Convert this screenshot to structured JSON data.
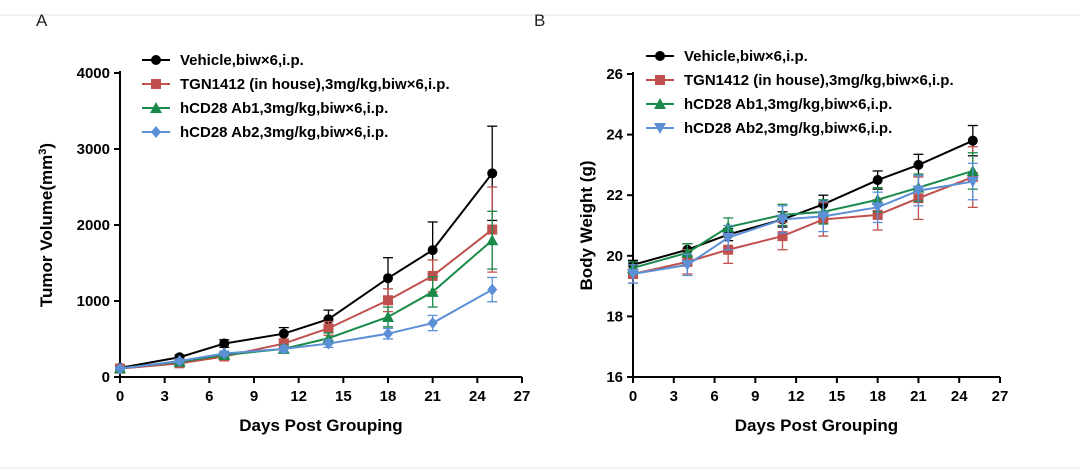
{
  "chart_data": [
    {
      "type": "line",
      "panel_label": "A",
      "xlabel": "Days Post Grouping",
      "ylabel": "Tumor Volume(mm",
      "ylabel_sup": "3",
      "ylabel_close": ")",
      "xlim": [
        0,
        27
      ],
      "ylim": [
        0,
        4000
      ],
      "xticks": [
        "0",
        "3",
        "6",
        "9",
        "12",
        "15",
        "18",
        "21",
        "24",
        "27"
      ],
      "yticks": [
        "0",
        "1000",
        "2000",
        "3000",
        "4000"
      ],
      "x": [
        0,
        4,
        7,
        11,
        14,
        18,
        21,
        25
      ],
      "legend_position": "top-right",
      "series": [
        {
          "name": "Vehicle,biw×6,i.p.",
          "color": "#000000",
          "marker": "circle",
          "values": [
            120,
            260,
            440,
            570,
            760,
            1300,
            1670,
            2680
          ],
          "errors": [
            20,
            30,
            50,
            80,
            120,
            270,
            370,
            620
          ]
        },
        {
          "name": "TGN1412 (in house),3mg/kg,biw×6,i.p.",
          "color": "#c0504d",
          "marker": "square",
          "values": [
            110,
            180,
            270,
            440,
            640,
            1010,
            1330,
            1940
          ],
          "errors": [
            20,
            25,
            40,
            60,
            90,
            150,
            210,
            560
          ]
        },
        {
          "name": "hCD28 Ab1,3mg/kg,biw×6,i.p.",
          "color": "#1a8a4a",
          "marker": "triangle-up",
          "values": [
            115,
            200,
            290,
            370,
            510,
            790,
            1120,
            1800
          ],
          "errors": [
            20,
            25,
            35,
            50,
            70,
            130,
            200,
            380
          ]
        },
        {
          "name": "hCD28 Ab2,3mg/kg,biw×6,i.p.",
          "color": "#5b8fd6",
          "marker": "diamond",
          "values": [
            110,
            210,
            310,
            370,
            440,
            570,
            710,
            1150
          ],
          "errors": [
            20,
            25,
            30,
            40,
            50,
            70,
            100,
            160
          ]
        }
      ]
    },
    {
      "type": "line",
      "panel_label": "B",
      "xlabel": "Days Post Grouping",
      "ylabel": "Body Weight (g)",
      "xlim": [
        0,
        27
      ],
      "ylim": [
        16,
        26
      ],
      "xticks": [
        "0",
        "3",
        "6",
        "9",
        "12",
        "15",
        "18",
        "21",
        "24",
        "27"
      ],
      "yticks": [
        "16",
        "18",
        "20",
        "22",
        "24",
        "26"
      ],
      "x": [
        0,
        4,
        7,
        11,
        14,
        18,
        21,
        25
      ],
      "legend_position": "top-right",
      "series": [
        {
          "name": "Vehicle,biw×6,i.p.",
          "color": "#000000",
          "marker": "circle",
          "values": [
            19.7,
            20.2,
            20.7,
            21.2,
            21.7,
            22.5,
            23.0,
            23.8
          ],
          "errors": [
            0.15,
            0.2,
            0.2,
            0.25,
            0.3,
            0.3,
            0.35,
            0.5
          ]
        },
        {
          "name": "TGN1412 (in house),3mg/kg,biw×6,i.p.",
          "color": "#c0504d",
          "marker": "square",
          "values": [
            19.4,
            19.8,
            20.2,
            20.65,
            21.2,
            21.35,
            21.9,
            22.6
          ],
          "errors": [
            0.3,
            0.4,
            0.45,
            0.45,
            0.55,
            0.5,
            0.7,
            1.0
          ]
        },
        {
          "name": "hCD28 Ab1,3mg/kg,biw×6,i.p.",
          "color": "#1a8a4a",
          "marker": "triangle-up",
          "values": [
            19.6,
            20.1,
            20.95,
            21.35,
            21.45,
            21.85,
            22.25,
            22.8
          ],
          "errors": [
            0.2,
            0.3,
            0.3,
            0.35,
            0.4,
            0.4,
            0.45,
            0.6
          ]
        },
        {
          "name": "hCD28 Ab2,3mg/kg,biw×6,i.p.",
          "color": "#5b8fd6",
          "marker": "triangle-down",
          "values": [
            19.4,
            19.7,
            20.6,
            21.2,
            21.3,
            21.6,
            22.15,
            22.45
          ],
          "errors": [
            0.3,
            0.35,
            0.4,
            0.45,
            0.5,
            0.5,
            0.5,
            0.6
          ]
        }
      ]
    }
  ]
}
